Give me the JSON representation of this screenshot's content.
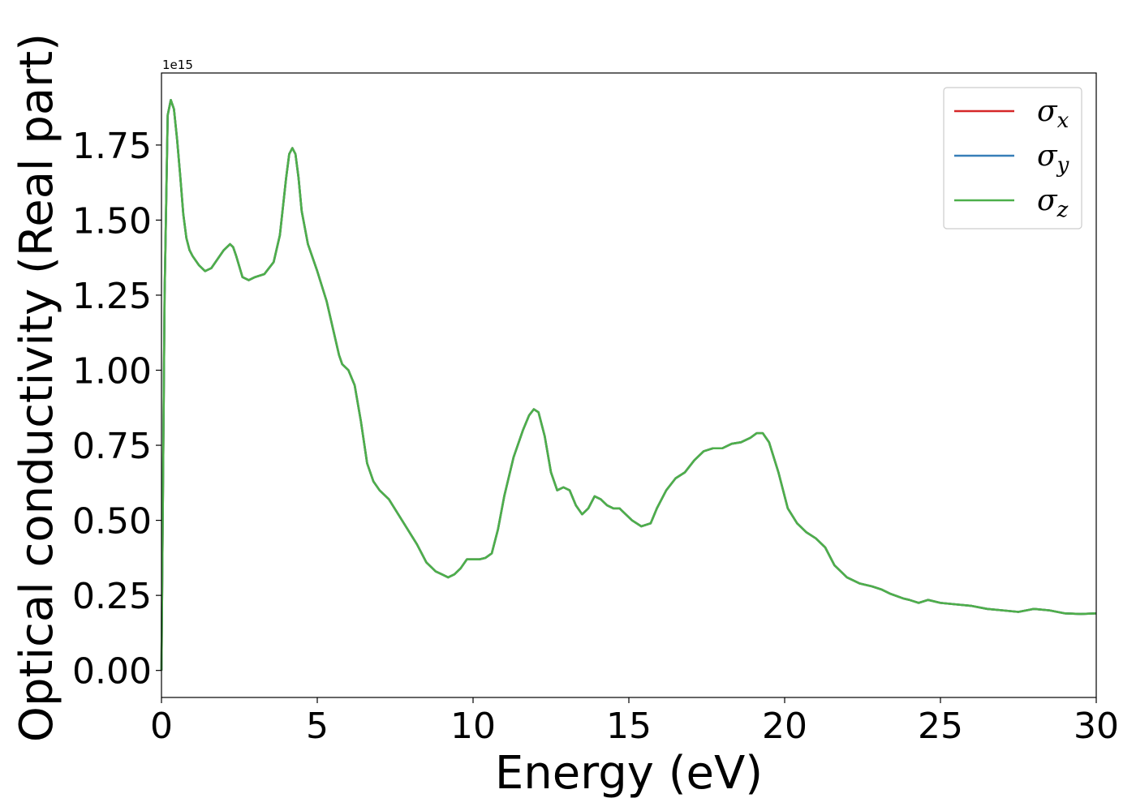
{
  "chart_data": {
    "type": "line",
    "title": "",
    "xlabel": "Energy (eV)",
    "ylabel": "Optical conductivity (Real part)",
    "y_offset_label": "1e15",
    "y_scale": 1000000000000000.0,
    "xlim": [
      0,
      30
    ],
    "ylim": [
      -0.09,
      1.99
    ],
    "x_ticks": [
      0,
      5,
      10,
      15,
      20,
      25,
      30
    ],
    "x_tick_labels": [
      "0",
      "5",
      "10",
      "15",
      "20",
      "25",
      "30"
    ],
    "y_ticks": [
      0.0,
      0.25,
      0.5,
      0.75,
      1.0,
      1.25,
      1.5,
      1.75
    ],
    "y_tick_labels": [
      "0.00",
      "0.25",
      "0.50",
      "0.75",
      "1.00",
      "1.25",
      "1.50",
      "1.75"
    ],
    "grid": false,
    "legend_position": "top-right",
    "x": [
      0.0,
      0.1,
      0.2,
      0.3,
      0.4,
      0.5,
      0.6,
      0.7,
      0.8,
      0.9,
      1.0,
      1.2,
      1.4,
      1.6,
      1.8,
      2.0,
      2.2,
      2.3,
      2.4,
      2.6,
      2.8,
      3.0,
      3.3,
      3.6,
      3.8,
      4.0,
      4.1,
      4.2,
      4.3,
      4.4,
      4.5,
      4.7,
      5.0,
      5.3,
      5.5,
      5.7,
      5.8,
      6.0,
      6.2,
      6.4,
      6.6,
      6.8,
      7.0,
      7.3,
      7.6,
      7.9,
      8.2,
      8.5,
      8.8,
      9.0,
      9.2,
      9.4,
      9.6,
      9.8,
      10.0,
      10.2,
      10.4,
      10.6,
      10.8,
      11.0,
      11.3,
      11.6,
      11.8,
      11.95,
      12.1,
      12.3,
      12.5,
      12.7,
      12.9,
      13.1,
      13.3,
      13.5,
      13.7,
      13.9,
      14.1,
      14.3,
      14.5,
      14.7,
      14.9,
      15.1,
      15.4,
      15.7,
      15.9,
      16.2,
      16.5,
      16.8,
      17.1,
      17.4,
      17.7,
      18.0,
      18.3,
      18.6,
      18.9,
      19.1,
      19.3,
      19.5,
      19.8,
      20.1,
      20.4,
      20.7,
      21.0,
      21.3,
      21.6,
      22.0,
      22.4,
      22.8,
      23.1,
      23.4,
      23.8,
      24.0,
      24.3,
      24.6,
      25.0,
      25.5,
      26.0,
      26.5,
      27.0,
      27.5,
      28.0,
      28.5,
      29.0,
      29.5,
      30.0
    ],
    "series": [
      {
        "name": "σx",
        "color": "#d62728",
        "values": [
          0.0,
          1.25,
          1.85,
          1.9,
          1.87,
          1.77,
          1.65,
          1.52,
          1.44,
          1.4,
          1.38,
          1.35,
          1.33,
          1.34,
          1.37,
          1.4,
          1.42,
          1.41,
          1.38,
          1.31,
          1.3,
          1.31,
          1.32,
          1.36,
          1.45,
          1.64,
          1.72,
          1.74,
          1.72,
          1.64,
          1.53,
          1.42,
          1.33,
          1.23,
          1.14,
          1.05,
          1.02,
          1.0,
          0.95,
          0.83,
          0.69,
          0.63,
          0.6,
          0.57,
          0.52,
          0.47,
          0.42,
          0.36,
          0.33,
          0.32,
          0.31,
          0.32,
          0.34,
          0.37,
          0.37,
          0.37,
          0.375,
          0.39,
          0.47,
          0.58,
          0.71,
          0.8,
          0.85,
          0.87,
          0.86,
          0.78,
          0.66,
          0.6,
          0.61,
          0.6,
          0.55,
          0.52,
          0.54,
          0.58,
          0.57,
          0.55,
          0.54,
          0.54,
          0.52,
          0.5,
          0.48,
          0.49,
          0.54,
          0.6,
          0.64,
          0.66,
          0.7,
          0.73,
          0.74,
          0.74,
          0.755,
          0.76,
          0.775,
          0.79,
          0.79,
          0.76,
          0.66,
          0.54,
          0.49,
          0.46,
          0.44,
          0.41,
          0.35,
          0.31,
          0.29,
          0.28,
          0.27,
          0.255,
          0.24,
          0.235,
          0.225,
          0.235,
          0.225,
          0.22,
          0.215,
          0.205,
          0.2,
          0.195,
          0.205,
          0.2,
          0.19,
          0.188,
          0.19
        ]
      },
      {
        "name": "σy",
        "color": "#377eb8",
        "values": [
          0.0,
          1.25,
          1.85,
          1.9,
          1.87,
          1.77,
          1.65,
          1.52,
          1.44,
          1.4,
          1.38,
          1.35,
          1.33,
          1.34,
          1.37,
          1.4,
          1.42,
          1.41,
          1.38,
          1.31,
          1.3,
          1.31,
          1.32,
          1.36,
          1.45,
          1.64,
          1.72,
          1.74,
          1.72,
          1.64,
          1.53,
          1.42,
          1.33,
          1.23,
          1.14,
          1.05,
          1.02,
          1.0,
          0.95,
          0.83,
          0.69,
          0.63,
          0.6,
          0.57,
          0.52,
          0.47,
          0.42,
          0.36,
          0.33,
          0.32,
          0.31,
          0.32,
          0.34,
          0.37,
          0.37,
          0.37,
          0.375,
          0.39,
          0.47,
          0.58,
          0.71,
          0.8,
          0.85,
          0.87,
          0.86,
          0.78,
          0.66,
          0.6,
          0.61,
          0.6,
          0.55,
          0.52,
          0.54,
          0.58,
          0.57,
          0.55,
          0.54,
          0.54,
          0.52,
          0.5,
          0.48,
          0.49,
          0.54,
          0.6,
          0.64,
          0.66,
          0.7,
          0.73,
          0.74,
          0.74,
          0.755,
          0.76,
          0.775,
          0.79,
          0.79,
          0.76,
          0.66,
          0.54,
          0.49,
          0.46,
          0.44,
          0.41,
          0.35,
          0.31,
          0.29,
          0.28,
          0.27,
          0.255,
          0.24,
          0.235,
          0.225,
          0.235,
          0.225,
          0.22,
          0.215,
          0.205,
          0.2,
          0.195,
          0.205,
          0.2,
          0.19,
          0.188,
          0.19
        ]
      },
      {
        "name": "σz",
        "color": "#4daf4a",
        "values": [
          0.0,
          1.25,
          1.85,
          1.9,
          1.87,
          1.77,
          1.65,
          1.52,
          1.44,
          1.4,
          1.38,
          1.35,
          1.33,
          1.34,
          1.37,
          1.4,
          1.42,
          1.41,
          1.38,
          1.31,
          1.3,
          1.31,
          1.32,
          1.36,
          1.45,
          1.64,
          1.72,
          1.74,
          1.72,
          1.64,
          1.53,
          1.42,
          1.33,
          1.23,
          1.14,
          1.05,
          1.02,
          1.0,
          0.95,
          0.83,
          0.69,
          0.63,
          0.6,
          0.57,
          0.52,
          0.47,
          0.42,
          0.36,
          0.33,
          0.32,
          0.31,
          0.32,
          0.34,
          0.37,
          0.37,
          0.37,
          0.375,
          0.39,
          0.47,
          0.58,
          0.71,
          0.8,
          0.85,
          0.87,
          0.86,
          0.78,
          0.66,
          0.6,
          0.61,
          0.6,
          0.55,
          0.52,
          0.54,
          0.58,
          0.57,
          0.55,
          0.54,
          0.54,
          0.52,
          0.5,
          0.48,
          0.49,
          0.54,
          0.6,
          0.64,
          0.66,
          0.7,
          0.73,
          0.74,
          0.74,
          0.755,
          0.76,
          0.775,
          0.79,
          0.79,
          0.76,
          0.66,
          0.54,
          0.49,
          0.46,
          0.44,
          0.41,
          0.35,
          0.31,
          0.29,
          0.28,
          0.27,
          0.255,
          0.24,
          0.235,
          0.225,
          0.235,
          0.225,
          0.22,
          0.215,
          0.205,
          0.2,
          0.195,
          0.205,
          0.2,
          0.19,
          0.188,
          0.19
        ]
      }
    ]
  }
}
